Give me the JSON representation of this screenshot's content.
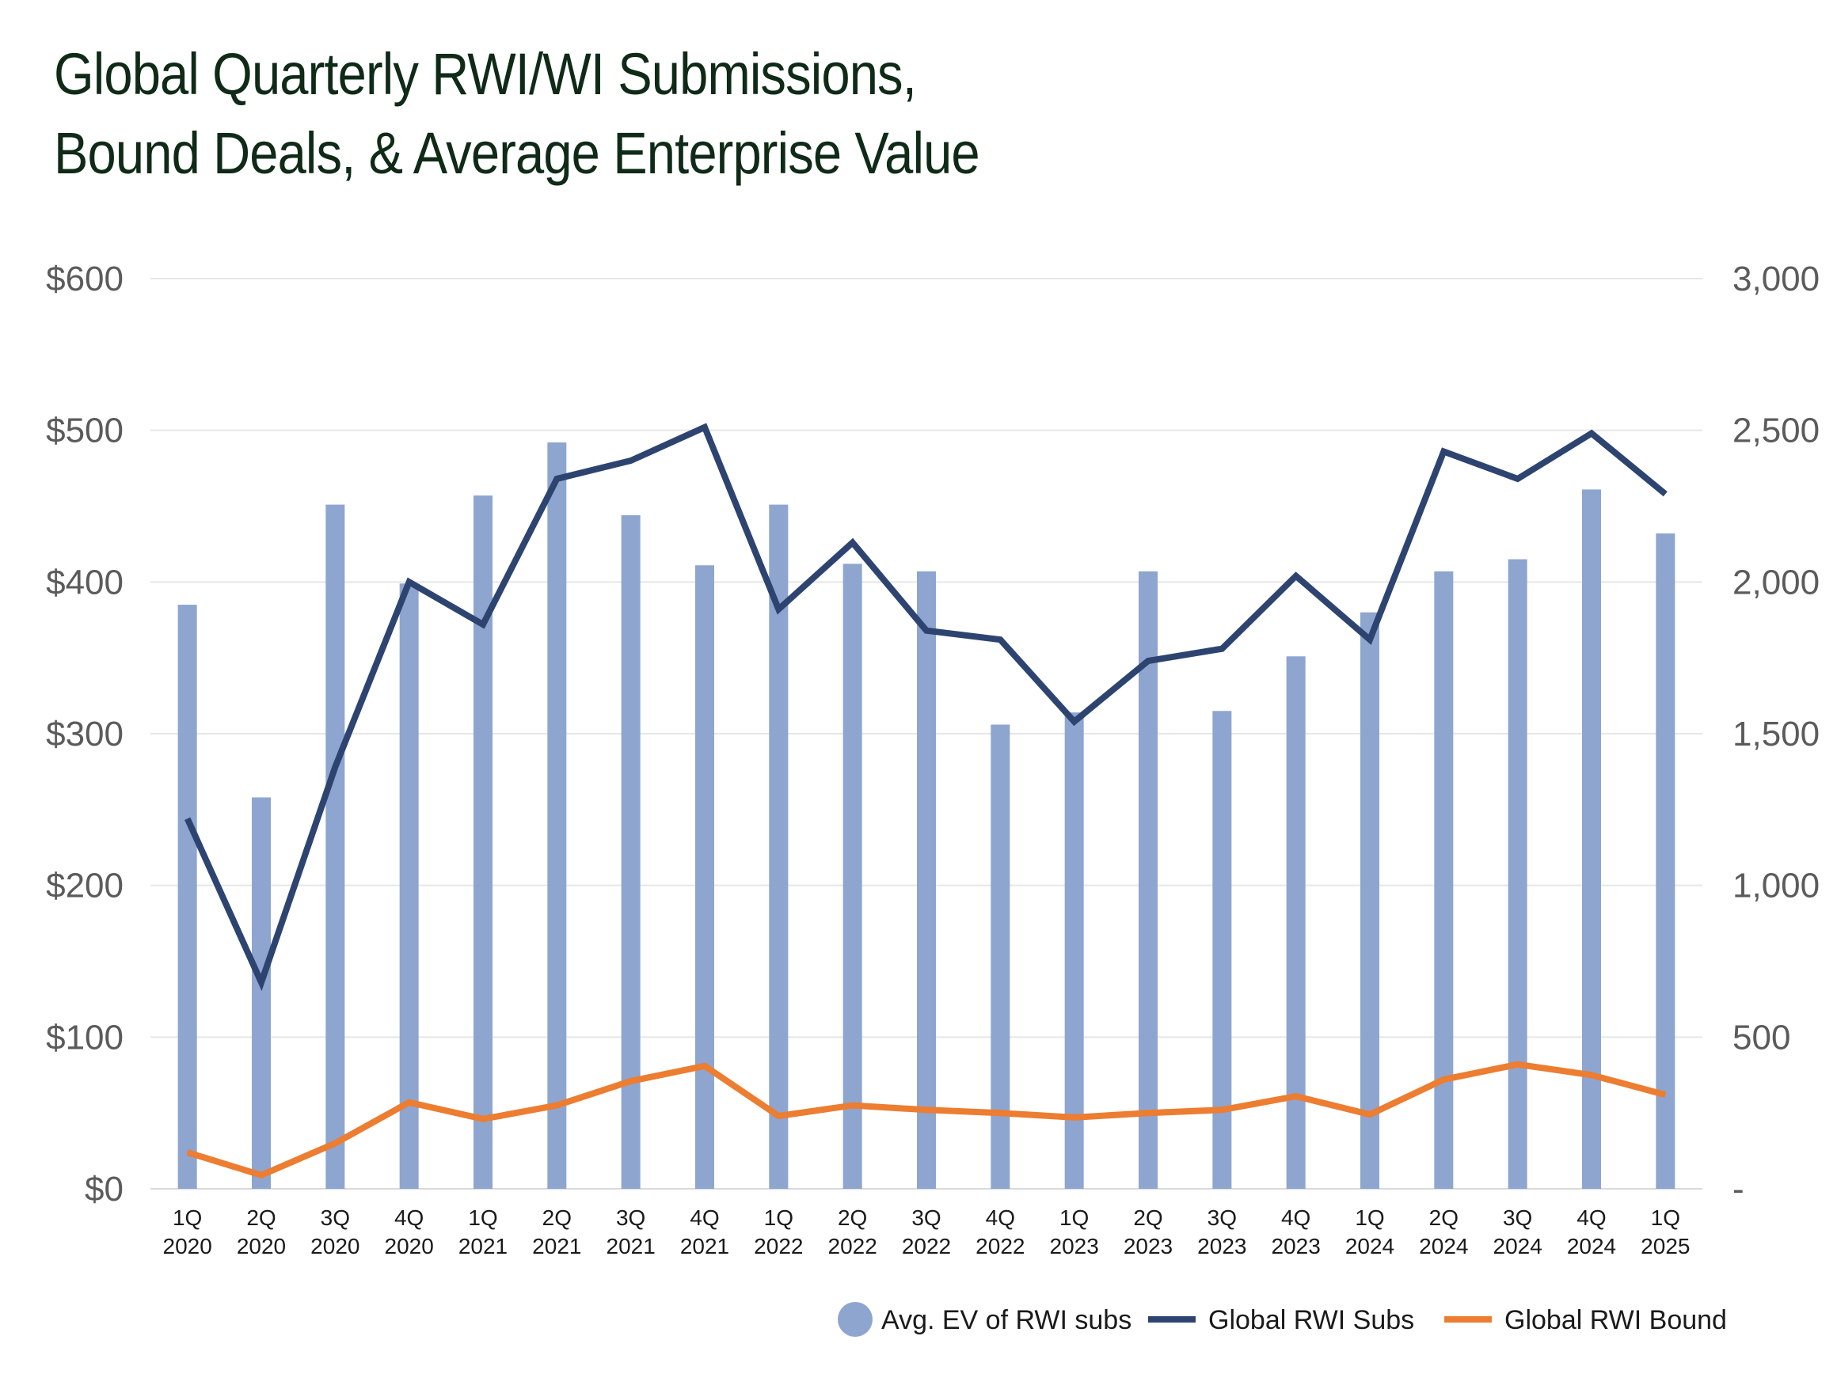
{
  "title": {
    "line1": "Global Quarterly RWI/WI Submissions,",
    "line2": "Bound Deals, & Average Enterprise Value"
  },
  "chart_data": {
    "type": "bar",
    "categories": [
      [
        "1Q",
        "2020"
      ],
      [
        "2Q",
        "2020"
      ],
      [
        "3Q",
        "2020"
      ],
      [
        "4Q",
        "2020"
      ],
      [
        "1Q",
        "2021"
      ],
      [
        "2Q",
        "2021"
      ],
      [
        "3Q",
        "2021"
      ],
      [
        "4Q",
        "2021"
      ],
      [
        "1Q",
        "2022"
      ],
      [
        "2Q",
        "2022"
      ],
      [
        "3Q",
        "2022"
      ],
      [
        "4Q",
        "2022"
      ],
      [
        "1Q",
        "2023"
      ],
      [
        "2Q",
        "2023"
      ],
      [
        "3Q",
        "2023"
      ],
      [
        "4Q",
        "2023"
      ],
      [
        "1Q",
        "2024"
      ],
      [
        "2Q",
        "2024"
      ],
      [
        "3Q",
        "2024"
      ],
      [
        "4Q",
        "2024"
      ],
      [
        "1Q",
        "2025"
      ]
    ],
    "series": [
      {
        "name": "Avg. EV of RWI subs",
        "type": "bar",
        "axis": "left",
        "color": "#8ea5cf",
        "values": [
          385,
          258,
          451,
          399,
          457,
          492,
          444,
          411,
          451,
          412,
          407,
          306,
          314,
          407,
          315,
          351,
          380,
          407,
          415,
          461,
          432
        ]
      },
      {
        "name": "Global RWI Subs",
        "type": "line",
        "axis": "right",
        "color": "#2e4470",
        "values": [
          1220,
          680,
          1390,
          2000,
          1860,
          2340,
          2400,
          2510,
          1910,
          2130,
          1840,
          1810,
          1540,
          1740,
          1780,
          2020,
          1810,
          2430,
          2340,
          2490,
          2290
        ]
      },
      {
        "name": "Global RWI Bound",
        "type": "line",
        "axis": "right",
        "color": "#ec7d31",
        "values": [
          120,
          45,
          150,
          285,
          230,
          275,
          355,
          405,
          240,
          275,
          260,
          250,
          235,
          250,
          260,
          305,
          245,
          360,
          410,
          375,
          310
        ]
      }
    ],
    "y_left": {
      "ylim": [
        0,
        600
      ],
      "ticks": [
        "$0",
        "$100",
        "$200",
        "$300",
        "$400",
        "$500",
        "$600"
      ]
    },
    "y_right": {
      "ylim": [
        0,
        3000
      ],
      "ticks": [
        "-",
        "500",
        "1,000",
        "1,500",
        "2,000",
        "2,500",
        "3,000"
      ]
    },
    "grid": true,
    "legend_position": "bottom-right"
  }
}
